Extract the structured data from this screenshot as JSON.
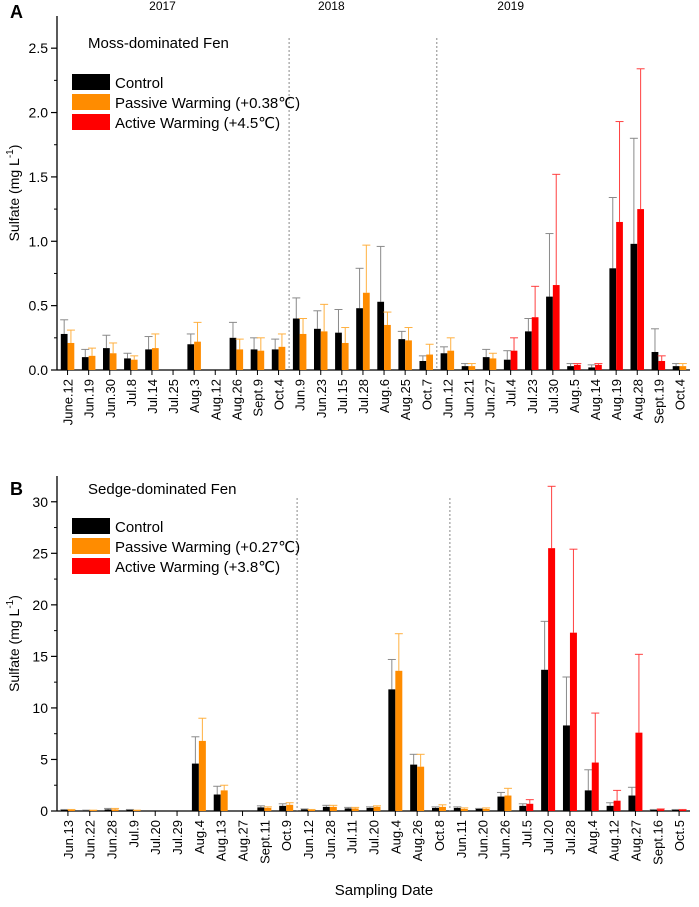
{
  "figure": {
    "xlabel": "Sampling Date"
  },
  "colors": {
    "control": "#000000",
    "passive": "#ff8c00",
    "active": "#ff0000",
    "error_control": "#8a8a8a",
    "error_passive": "#ffb040",
    "error_active": "#ff4040",
    "divider": "#888888"
  },
  "chart_data": [
    {
      "panel": "A",
      "type": "bar",
      "title": "Moss-dominated Fen",
      "ylabel": "Sulfate (mg L-1)",
      "ylabel_main": "Sulfate (mg L",
      "ylabel_sup": "-1",
      "ylabel_close": ")",
      "ylim": [
        0,
        2.75
      ],
      "yticks": [
        0.0,
        0.5,
        1.0,
        1.5,
        2.0,
        2.5
      ],
      "ytick_labels": [
        "0.0",
        "0.5",
        "1.0",
        "1.5",
        "2.0",
        "2.5"
      ],
      "years": [
        {
          "label": "2017",
          "start": 0,
          "end": 9
        },
        {
          "label": "2018",
          "start": 10,
          "end": 15
        },
        {
          "label": "2019",
          "start": 16,
          "end": 26
        }
      ],
      "categories": [
        "June.12",
        "Jun.19",
        "Jun.30",
        "Jul.8",
        "Jul.14",
        "Jul.25",
        "Aug.3",
        "Aug.12",
        "Aug.26",
        "Sept.9",
        "Oct.4",
        "Jun.9",
        "Jun.23",
        "Jul.15",
        "Jul.28",
        "Aug.6",
        "Aug.25",
        "Oct.7",
        "Jun.12",
        "Jun.21",
        "Jun.27",
        "Jul.4",
        "Jul.23",
        "Jul.30",
        "Aug.5",
        "Aug.14",
        "Aug.19",
        "Aug.28",
        "Sept.19",
        "Oct.4"
      ],
      "legend": [
        "Control",
        "Passive Warming (+0.38℃)",
        "Active Warming (+4.5℃)"
      ],
      "series": [
        {
          "name": "Control",
          "key": "control",
          "values": [
            0.28,
            0.1,
            0.17,
            0.09,
            0.16,
            null,
            0.2,
            null,
            0.25,
            0.16,
            0.16,
            0.4,
            0.32,
            0.29,
            0.48,
            0.53,
            0.24,
            0.07,
            0.13,
            0.03,
            0.1,
            0.08,
            0.3,
            0.57,
            0.03,
            0.02,
            0.79,
            0.98,
            0.14,
            0.03
          ],
          "errors": [
            0.11,
            0.06,
            0.1,
            0.04,
            0.1,
            null,
            0.08,
            null,
            0.12,
            0.09,
            0.08,
            0.16,
            0.14,
            0.18,
            0.31,
            0.43,
            0.06,
            0.04,
            0.05,
            0.02,
            0.06,
            0.07,
            0.1,
            0.49,
            0.02,
            0.02,
            0.55,
            0.82,
            0.18,
            0.02
          ]
        },
        {
          "name": "Passive Warming",
          "key": "passive",
          "values": [
            0.21,
            0.11,
            0.13,
            0.08,
            0.17,
            null,
            0.22,
            null,
            0.16,
            0.15,
            0.18,
            0.28,
            0.3,
            0.21,
            0.6,
            0.35,
            0.23,
            0.12,
            0.15,
            0.03,
            0.09,
            null,
            null,
            null,
            null,
            null,
            null,
            null,
            null,
            0.03
          ],
          "errors": [
            0.1,
            0.06,
            0.08,
            0.03,
            0.11,
            null,
            0.15,
            null,
            0.08,
            0.1,
            0.1,
            0.12,
            0.21,
            0.12,
            0.37,
            0.1,
            0.1,
            0.08,
            0.1,
            0.02,
            0.04,
            null,
            null,
            null,
            null,
            null,
            null,
            null,
            null,
            0.02
          ]
        },
        {
          "name": "Active Warming",
          "key": "active",
          "values": [
            null,
            null,
            null,
            null,
            null,
            null,
            null,
            null,
            null,
            null,
            null,
            null,
            null,
            null,
            null,
            null,
            null,
            null,
            null,
            null,
            null,
            0.15,
            0.41,
            0.66,
            0.04,
            0.04,
            1.15,
            1.25,
            0.07,
            null
          ],
          "errors": [
            null,
            null,
            null,
            null,
            null,
            null,
            null,
            null,
            null,
            null,
            null,
            null,
            null,
            null,
            null,
            null,
            null,
            null,
            null,
            null,
            null,
            0.1,
            0.24,
            0.86,
            0.01,
            0.01,
            0.78,
            1.09,
            0.04,
            null
          ]
        }
      ]
    },
    {
      "panel": "B",
      "type": "bar",
      "title": "Sedge-dominated Fen",
      "ylabel": "Sulfate (mg L-1)",
      "ylabel_main": "Sulfate (mg L",
      "ylabel_sup": "-1",
      "ylabel_close": ")",
      "ylim": [
        0,
        32.5
      ],
      "yticks": [
        0,
        5,
        10,
        15,
        20,
        25,
        30
      ],
      "ytick_labels": [
        "0",
        "5",
        "10",
        "15",
        "20",
        "25",
        "30"
      ],
      "categories": [
        "Jun.13",
        "Jun.22",
        "Jun.28",
        "Jul.9",
        "Jul.20",
        "Jul.29",
        "Aug.4",
        "Aug.13",
        "Aug.27",
        "Sept.11",
        "Oct.9",
        "Jun.12",
        "Jun.28",
        "Jul.11",
        "Jul.20",
        "Aug.4",
        "Aug.26",
        "Oct.8",
        "Jun.11",
        "Jun.20",
        "Jun.26",
        "Jul.5",
        "Jul.20",
        "Jul.28",
        "Aug.4",
        "Aug.12",
        "Aug.27",
        "Sept.16",
        "Oct.5"
      ],
      "legend": [
        "Control",
        "Passive Warming (+0.27℃)",
        "Active Warming (+3.8℃)"
      ],
      "series": [
        {
          "name": "Control",
          "key": "control",
          "values": [
            0.1,
            0.05,
            0.15,
            0.1,
            null,
            null,
            4.6,
            1.6,
            null,
            0.35,
            0.5,
            0.15,
            0.4,
            0.25,
            0.3,
            11.8,
            4.5,
            0.3,
            0.3,
            0.2,
            1.4,
            0.5,
            13.7,
            8.3,
            2.0,
            0.5,
            1.5,
            0.1,
            0.1
          ],
          "errors": [
            0.05,
            0.03,
            0.1,
            0.05,
            null,
            null,
            2.6,
            0.8,
            null,
            0.15,
            0.2,
            0.05,
            0.15,
            0.1,
            0.1,
            2.9,
            1.0,
            0.1,
            0.1,
            0.05,
            0.4,
            0.2,
            4.7,
            4.7,
            2.0,
            0.3,
            0.8,
            0.05,
            0.05
          ]
        },
        {
          "name": "Passive Warming",
          "key": "passive",
          "values": [
            0.1,
            0.05,
            0.15,
            0.05,
            null,
            null,
            6.8,
            2.0,
            null,
            0.3,
            0.6,
            0.1,
            0.4,
            0.25,
            0.4,
            13.6,
            4.3,
            0.4,
            0.2,
            0.2,
            1.5,
            null,
            null,
            null,
            null,
            null,
            null,
            null,
            null
          ],
          "errors": [
            0.05,
            0.03,
            0.1,
            0.03,
            null,
            null,
            2.2,
            0.5,
            null,
            0.1,
            0.2,
            0.05,
            0.15,
            0.1,
            0.1,
            3.6,
            1.2,
            0.2,
            0.1,
            0.1,
            0.7,
            null,
            null,
            null,
            null,
            null,
            null,
            null,
            null
          ]
        },
        {
          "name": "Active Warming",
          "key": "active",
          "values": [
            null,
            null,
            null,
            null,
            null,
            null,
            null,
            null,
            null,
            null,
            null,
            null,
            null,
            null,
            null,
            null,
            null,
            null,
            null,
            null,
            null,
            0.7,
            25.5,
            17.3,
            4.7,
            1.0,
            7.6,
            0.15,
            0.1
          ],
          "errors": [
            null,
            null,
            null,
            null,
            null,
            null,
            null,
            null,
            null,
            null,
            null,
            null,
            null,
            null,
            null,
            null,
            null,
            null,
            null,
            null,
            null,
            0.4,
            6.0,
            8.1,
            4.8,
            1.0,
            7.6,
            0.05,
            0.05
          ]
        }
      ]
    }
  ]
}
